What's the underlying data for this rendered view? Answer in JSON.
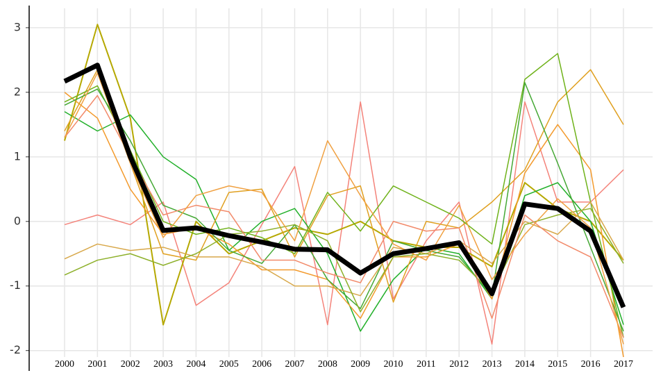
{
  "chart_data": {
    "type": "line",
    "categories": [
      "2000",
      "2001",
      "2002",
      "2003",
      "2004",
      "2005",
      "2006",
      "2007",
      "2008",
      "2009",
      "2010",
      "2011",
      "2012",
      "2013",
      "2014",
      "2015",
      "2016",
      "2017"
    ],
    "ylim": [
      -2.1,
      3.3
    ],
    "yticks": [
      -2,
      -1,
      0,
      1,
      2,
      3
    ],
    "grid": true,
    "series": [
      {
        "color": "#f4837a",
        "width": 1.5,
        "values": [
          -0.05,
          0.1,
          -0.05,
          0.3,
          -1.3,
          -0.95,
          -0.05,
          0.85,
          -1.6,
          1.85,
          -1.2,
          -0.3,
          0.3,
          -1.9,
          1.85,
          0.3,
          0.3,
          0.8
        ]
      },
      {
        "color": "#b5a800",
        "width": 2,
        "values": [
          1.25,
          3.05,
          1.6,
          -1.6,
          0.0,
          -0.5,
          -0.3,
          -0.1,
          -0.2,
          0.0,
          -0.3,
          -0.4,
          -0.4,
          -0.7,
          0.6,
          0.2,
          0.0,
          -0.6
        ]
      },
      {
        "color": "#22b02a",
        "width": 1.5,
        "values": [
          1.7,
          1.4,
          1.65,
          1.0,
          0.65,
          -0.45,
          0.0,
          0.2,
          -0.5,
          -1.7,
          -0.9,
          -0.4,
          -0.5,
          -1.2,
          0.4,
          0.6,
          0.0,
          -1.6
        ]
      },
      {
        "color": "#f39a2c",
        "width": 1.5,
        "values": [
          2.0,
          1.6,
          0.5,
          -0.2,
          -0.1,
          -0.35,
          -0.75,
          -0.75,
          -0.9,
          -1.5,
          -0.55,
          -0.55,
          -0.35,
          -1.2,
          0.75,
          1.5,
          0.8,
          -2.1
        ]
      },
      {
        "color": "#e0a020",
        "width": 1.5,
        "values": [
          1.4,
          2.35,
          0.9,
          -0.5,
          -0.6,
          0.45,
          0.5,
          -0.55,
          0.4,
          0.55,
          -1.25,
          0.0,
          -0.1,
          0.3,
          0.8,
          1.85,
          2.35,
          1.5
        ]
      },
      {
        "color": "#6fb21a",
        "width": 1.5,
        "values": [
          1.85,
          2.1,
          1.1,
          0.0,
          -0.2,
          -0.1,
          -0.25,
          -0.5,
          0.45,
          -0.15,
          0.55,
          0.3,
          0.05,
          -0.35,
          2.2,
          2.6,
          0.3,
          -1.8
        ]
      },
      {
        "color": "#45a835",
        "width": 1.5,
        "values": [
          1.8,
          2.05,
          1.25,
          0.25,
          0.05,
          -0.45,
          -0.65,
          -0.05,
          -0.9,
          -1.35,
          -0.3,
          -0.45,
          -0.55,
          -1.15,
          2.15,
          0.9,
          -0.4,
          -1.7
        ]
      },
      {
        "color": "#d8a84a",
        "width": 1.5,
        "values": [
          -0.58,
          -0.35,
          -0.45,
          -0.4,
          -0.55,
          -0.55,
          -0.7,
          -1.0,
          -1.0,
          -1.15,
          -0.4,
          -0.5,
          -0.3,
          -0.65,
          0.0,
          -0.2,
          0.3,
          -0.6
        ]
      },
      {
        "color": "#8db02a",
        "width": 1.5,
        "values": [
          -0.83,
          -0.6,
          -0.5,
          -0.68,
          -0.5,
          -0.2,
          -0.15,
          -0.05,
          -0.3,
          -1.4,
          -0.55,
          -0.5,
          -0.6,
          -1.1,
          -0.05,
          0.1,
          0.2,
          -0.65
        ]
      },
      {
        "color": "#f28a6a",
        "width": 1.5,
        "values": [
          1.3,
          1.95,
          1.0,
          0.1,
          0.25,
          0.15,
          -0.6,
          -0.6,
          -0.8,
          -0.95,
          0.0,
          -0.15,
          -0.1,
          -1.5,
          0.1,
          -0.3,
          -0.55,
          -1.8
        ]
      },
      {
        "color": "#f0a040",
        "width": 1.5,
        "values": [
          1.3,
          2.3,
          0.9,
          -0.25,
          0.4,
          0.55,
          0.45,
          -0.3,
          1.25,
          0.4,
          -0.35,
          -0.6,
          0.25,
          -0.9,
          -0.2,
          0.35,
          -0.1,
          -1.9
        ]
      },
      {
        "color": "#000000",
        "width": 7,
        "values": [
          2.17,
          2.42,
          1.0,
          -0.14,
          -0.1,
          -0.22,
          -0.32,
          -0.43,
          -0.44,
          -0.8,
          -0.5,
          -0.42,
          -0.33,
          -1.12,
          0.27,
          0.2,
          -0.15,
          -1.33
        ]
      }
    ]
  }
}
